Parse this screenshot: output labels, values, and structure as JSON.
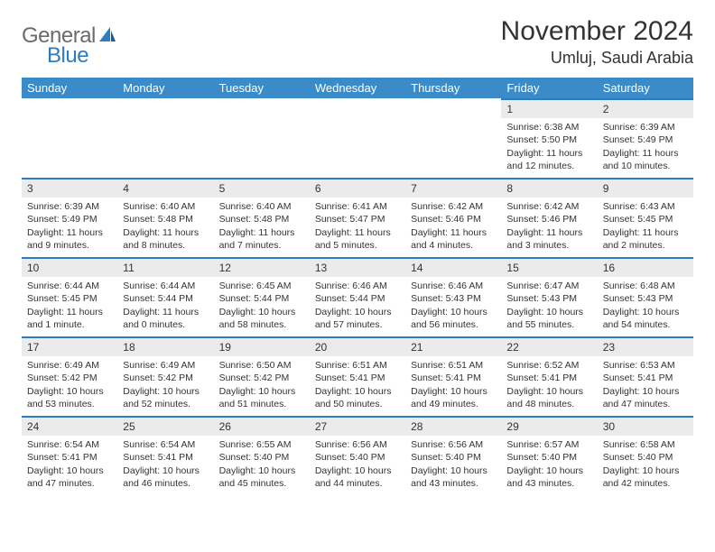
{
  "brand": {
    "part1": "General",
    "part2": "Blue"
  },
  "title": "November 2024",
  "location": "Umluj, Saudi Arabia",
  "colors": {
    "header_bg": "#3b8bc9",
    "accent_line": "#2d7cc0",
    "daynum_bg": "#ebebeb",
    "text": "#333333",
    "logo_gray": "#6b6b6b",
    "logo_blue": "#2d7cc0",
    "bg": "#ffffff"
  },
  "weekdays": [
    "Sunday",
    "Monday",
    "Tuesday",
    "Wednesday",
    "Thursday",
    "Friday",
    "Saturday"
  ],
  "grid": [
    [
      null,
      null,
      null,
      null,
      null,
      {
        "n": "1",
        "sr": "Sunrise: 6:38 AM",
        "ss": "Sunset: 5:50 PM",
        "dl1": "Daylight: 11 hours",
        "dl2": "and 12 minutes."
      },
      {
        "n": "2",
        "sr": "Sunrise: 6:39 AM",
        "ss": "Sunset: 5:49 PM",
        "dl1": "Daylight: 11 hours",
        "dl2": "and 10 minutes."
      }
    ],
    [
      {
        "n": "3",
        "sr": "Sunrise: 6:39 AM",
        "ss": "Sunset: 5:49 PM",
        "dl1": "Daylight: 11 hours",
        "dl2": "and 9 minutes."
      },
      {
        "n": "4",
        "sr": "Sunrise: 6:40 AM",
        "ss": "Sunset: 5:48 PM",
        "dl1": "Daylight: 11 hours",
        "dl2": "and 8 minutes."
      },
      {
        "n": "5",
        "sr": "Sunrise: 6:40 AM",
        "ss": "Sunset: 5:48 PM",
        "dl1": "Daylight: 11 hours",
        "dl2": "and 7 minutes."
      },
      {
        "n": "6",
        "sr": "Sunrise: 6:41 AM",
        "ss": "Sunset: 5:47 PM",
        "dl1": "Daylight: 11 hours",
        "dl2": "and 5 minutes."
      },
      {
        "n": "7",
        "sr": "Sunrise: 6:42 AM",
        "ss": "Sunset: 5:46 PM",
        "dl1": "Daylight: 11 hours",
        "dl2": "and 4 minutes."
      },
      {
        "n": "8",
        "sr": "Sunrise: 6:42 AM",
        "ss": "Sunset: 5:46 PM",
        "dl1": "Daylight: 11 hours",
        "dl2": "and 3 minutes."
      },
      {
        "n": "9",
        "sr": "Sunrise: 6:43 AM",
        "ss": "Sunset: 5:45 PM",
        "dl1": "Daylight: 11 hours",
        "dl2": "and 2 minutes."
      }
    ],
    [
      {
        "n": "10",
        "sr": "Sunrise: 6:44 AM",
        "ss": "Sunset: 5:45 PM",
        "dl1": "Daylight: 11 hours",
        "dl2": "and 1 minute."
      },
      {
        "n": "11",
        "sr": "Sunrise: 6:44 AM",
        "ss": "Sunset: 5:44 PM",
        "dl1": "Daylight: 11 hours",
        "dl2": "and 0 minutes."
      },
      {
        "n": "12",
        "sr": "Sunrise: 6:45 AM",
        "ss": "Sunset: 5:44 PM",
        "dl1": "Daylight: 10 hours",
        "dl2": "and 58 minutes."
      },
      {
        "n": "13",
        "sr": "Sunrise: 6:46 AM",
        "ss": "Sunset: 5:44 PM",
        "dl1": "Daylight: 10 hours",
        "dl2": "and 57 minutes."
      },
      {
        "n": "14",
        "sr": "Sunrise: 6:46 AM",
        "ss": "Sunset: 5:43 PM",
        "dl1": "Daylight: 10 hours",
        "dl2": "and 56 minutes."
      },
      {
        "n": "15",
        "sr": "Sunrise: 6:47 AM",
        "ss": "Sunset: 5:43 PM",
        "dl1": "Daylight: 10 hours",
        "dl2": "and 55 minutes."
      },
      {
        "n": "16",
        "sr": "Sunrise: 6:48 AM",
        "ss": "Sunset: 5:43 PM",
        "dl1": "Daylight: 10 hours",
        "dl2": "and 54 minutes."
      }
    ],
    [
      {
        "n": "17",
        "sr": "Sunrise: 6:49 AM",
        "ss": "Sunset: 5:42 PM",
        "dl1": "Daylight: 10 hours",
        "dl2": "and 53 minutes."
      },
      {
        "n": "18",
        "sr": "Sunrise: 6:49 AM",
        "ss": "Sunset: 5:42 PM",
        "dl1": "Daylight: 10 hours",
        "dl2": "and 52 minutes."
      },
      {
        "n": "19",
        "sr": "Sunrise: 6:50 AM",
        "ss": "Sunset: 5:42 PM",
        "dl1": "Daylight: 10 hours",
        "dl2": "and 51 minutes."
      },
      {
        "n": "20",
        "sr": "Sunrise: 6:51 AM",
        "ss": "Sunset: 5:41 PM",
        "dl1": "Daylight: 10 hours",
        "dl2": "and 50 minutes."
      },
      {
        "n": "21",
        "sr": "Sunrise: 6:51 AM",
        "ss": "Sunset: 5:41 PM",
        "dl1": "Daylight: 10 hours",
        "dl2": "and 49 minutes."
      },
      {
        "n": "22",
        "sr": "Sunrise: 6:52 AM",
        "ss": "Sunset: 5:41 PM",
        "dl1": "Daylight: 10 hours",
        "dl2": "and 48 minutes."
      },
      {
        "n": "23",
        "sr": "Sunrise: 6:53 AM",
        "ss": "Sunset: 5:41 PM",
        "dl1": "Daylight: 10 hours",
        "dl2": "and 47 minutes."
      }
    ],
    [
      {
        "n": "24",
        "sr": "Sunrise: 6:54 AM",
        "ss": "Sunset: 5:41 PM",
        "dl1": "Daylight: 10 hours",
        "dl2": "and 47 minutes."
      },
      {
        "n": "25",
        "sr": "Sunrise: 6:54 AM",
        "ss": "Sunset: 5:41 PM",
        "dl1": "Daylight: 10 hours",
        "dl2": "and 46 minutes."
      },
      {
        "n": "26",
        "sr": "Sunrise: 6:55 AM",
        "ss": "Sunset: 5:40 PM",
        "dl1": "Daylight: 10 hours",
        "dl2": "and 45 minutes."
      },
      {
        "n": "27",
        "sr": "Sunrise: 6:56 AM",
        "ss": "Sunset: 5:40 PM",
        "dl1": "Daylight: 10 hours",
        "dl2": "and 44 minutes."
      },
      {
        "n": "28",
        "sr": "Sunrise: 6:56 AM",
        "ss": "Sunset: 5:40 PM",
        "dl1": "Daylight: 10 hours",
        "dl2": "and 43 minutes."
      },
      {
        "n": "29",
        "sr": "Sunrise: 6:57 AM",
        "ss": "Sunset: 5:40 PM",
        "dl1": "Daylight: 10 hours",
        "dl2": "and 43 minutes."
      },
      {
        "n": "30",
        "sr": "Sunrise: 6:58 AM",
        "ss": "Sunset: 5:40 PM",
        "dl1": "Daylight: 10 hours",
        "dl2": "and 42 minutes."
      }
    ]
  ]
}
